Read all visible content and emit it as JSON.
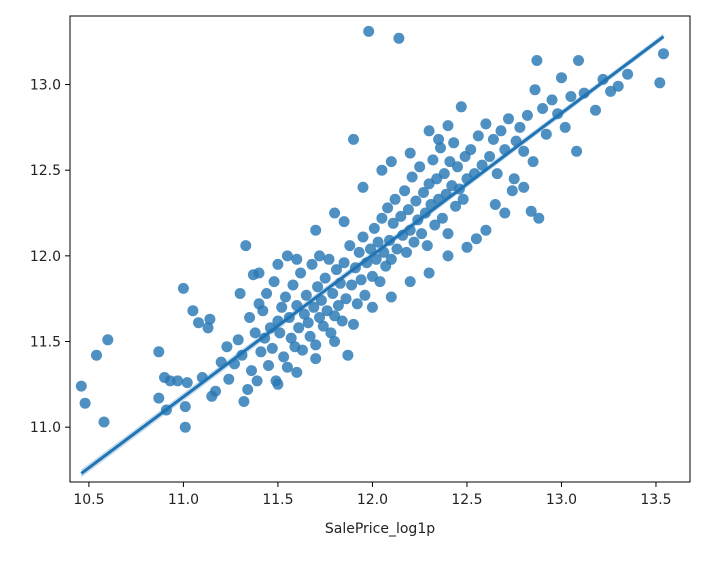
{
  "chart_data": {
    "type": "scatter",
    "title": "",
    "xlabel": "SalePrice_log1p",
    "ylabel": "",
    "xlim": [
      10.4,
      13.68
    ],
    "ylim": [
      10.68,
      13.4
    ],
    "x_ticks": [
      10.5,
      11.0,
      11.5,
      12.0,
      12.5,
      13.0,
      13.5
    ],
    "x_tick_labels": [
      "10.5",
      "11.0",
      "11.5",
      "12.0",
      "12.5",
      "13.0",
      "13.5"
    ],
    "y_ticks": [
      11.0,
      11.5,
      12.0,
      12.5,
      13.0
    ],
    "y_tick_labels": [
      "11.0",
      "11.5",
      "12.0",
      "12.5",
      "13.0"
    ],
    "grid": false,
    "legend": "none",
    "colors": {
      "points": "#2878b5",
      "line": "#2174b4",
      "band": "#9cc3e0"
    },
    "regression_line": {
      "x": [
        10.46,
        13.54
      ],
      "y": [
        10.73,
        13.28
      ]
    },
    "series": [
      {
        "points": [
          [
            10.46,
            11.24
          ],
          [
            10.48,
            11.14
          ],
          [
            10.54,
            11.42
          ],
          [
            10.58,
            11.03
          ],
          [
            10.6,
            11.51
          ],
          [
            10.87,
            11.44
          ],
          [
            10.87,
            11.17
          ],
          [
            10.9,
            11.29
          ],
          [
            10.91,
            11.1
          ],
          [
            10.93,
            11.27
          ],
          [
            10.97,
            11.27
          ],
          [
            11.0,
            11.81
          ],
          [
            11.01,
            11.0
          ],
          [
            11.01,
            11.12
          ],
          [
            11.02,
            11.26
          ],
          [
            11.05,
            11.68
          ],
          [
            11.08,
            11.61
          ],
          [
            11.1,
            11.29
          ],
          [
            11.13,
            11.58
          ],
          [
            11.14,
            11.63
          ],
          [
            11.15,
            11.18
          ],
          [
            11.17,
            11.21
          ],
          [
            11.2,
            11.38
          ],
          [
            11.23,
            11.47
          ],
          [
            11.24,
            11.28
          ],
          [
            11.27,
            11.37
          ],
          [
            11.29,
            11.51
          ],
          [
            11.31,
            11.42
          ],
          [
            11.32,
            11.15
          ],
          [
            11.33,
            12.06
          ],
          [
            11.34,
            11.22
          ],
          [
            11.35,
            11.64
          ],
          [
            11.36,
            11.33
          ],
          [
            11.37,
            11.89
          ],
          [
            11.38,
            11.55
          ],
          [
            11.39,
            11.27
          ],
          [
            11.4,
            11.72
          ],
          [
            11.41,
            11.44
          ],
          [
            11.42,
            11.68
          ],
          [
            11.43,
            11.52
          ],
          [
            11.44,
            11.78
          ],
          [
            11.45,
            11.36
          ],
          [
            11.46,
            11.58
          ],
          [
            11.47,
            11.46
          ],
          [
            11.48,
            11.85
          ],
          [
            11.49,
            11.27
          ],
          [
            11.5,
            11.62
          ],
          [
            11.51,
            11.55
          ],
          [
            11.52,
            11.7
          ],
          [
            11.53,
            11.41
          ],
          [
            11.54,
            11.76
          ],
          [
            11.55,
            11.35
          ],
          [
            11.56,
            11.64
          ],
          [
            11.57,
            11.52
          ],
          [
            11.58,
            11.83
          ],
          [
            11.59,
            11.47
          ],
          [
            11.6,
            11.71
          ],
          [
            11.61,
            11.58
          ],
          [
            11.62,
            11.9
          ],
          [
            11.63,
            11.45
          ],
          [
            11.64,
            11.66
          ],
          [
            11.65,
            11.77
          ],
          [
            11.66,
            11.61
          ],
          [
            11.67,
            11.53
          ],
          [
            11.68,
            11.95
          ],
          [
            11.69,
            11.7
          ],
          [
            11.7,
            11.48
          ],
          [
            11.71,
            11.82
          ],
          [
            11.72,
            11.64
          ],
          [
            11.73,
            11.74
          ],
          [
            11.74,
            11.59
          ],
          [
            11.75,
            11.87
          ],
          [
            11.76,
            11.68
          ],
          [
            11.77,
            11.98
          ],
          [
            11.78,
            11.55
          ],
          [
            11.79,
            11.78
          ],
          [
            11.8,
            11.65
          ],
          [
            11.81,
            11.92
          ],
          [
            11.82,
            11.71
          ],
          [
            11.83,
            11.84
          ],
          [
            11.84,
            11.62
          ],
          [
            11.85,
            11.96
          ],
          [
            11.86,
            11.75
          ],
          [
            11.87,
            11.42
          ],
          [
            11.88,
            12.06
          ],
          [
            11.89,
            11.83
          ],
          [
            11.9,
            12.68
          ],
          [
            11.91,
            11.93
          ],
          [
            11.92,
            11.72
          ],
          [
            11.93,
            12.02
          ],
          [
            11.94,
            11.86
          ],
          [
            11.95,
            12.11
          ],
          [
            11.96,
            11.77
          ],
          [
            11.97,
            11.96
          ],
          [
            11.98,
            13.31
          ],
          [
            11.99,
            12.04
          ],
          [
            12.0,
            11.88
          ],
          [
            12.01,
            12.16
          ],
          [
            12.02,
            11.98
          ],
          [
            12.03,
            12.08
          ],
          [
            12.04,
            11.85
          ],
          [
            12.05,
            12.22
          ],
          [
            12.06,
            12.02
          ],
          [
            12.07,
            11.94
          ],
          [
            12.08,
            12.28
          ],
          [
            12.09,
            12.09
          ],
          [
            12.1,
            11.98
          ],
          [
            12.11,
            12.19
          ],
          [
            12.12,
            12.33
          ],
          [
            12.13,
            12.04
          ],
          [
            12.14,
            13.27
          ],
          [
            12.15,
            12.23
          ],
          [
            12.16,
            12.12
          ],
          [
            12.17,
            12.38
          ],
          [
            12.18,
            12.02
          ],
          [
            12.19,
            12.27
          ],
          [
            12.2,
            12.15
          ],
          [
            12.21,
            12.46
          ],
          [
            12.22,
            12.08
          ],
          [
            12.23,
            12.32
          ],
          [
            12.24,
            12.21
          ],
          [
            12.25,
            12.52
          ],
          [
            12.26,
            12.13
          ],
          [
            12.27,
            12.37
          ],
          [
            12.28,
            12.25
          ],
          [
            12.29,
            12.06
          ],
          [
            12.3,
            12.42
          ],
          [
            12.31,
            12.3
          ],
          [
            12.32,
            12.56
          ],
          [
            12.33,
            12.18
          ],
          [
            12.34,
            12.45
          ],
          [
            12.35,
            12.33
          ],
          [
            12.36,
            12.63
          ],
          [
            12.37,
            12.22
          ],
          [
            12.38,
            12.48
          ],
          [
            12.39,
            12.36
          ],
          [
            12.4,
            12.13
          ],
          [
            12.41,
            12.55
          ],
          [
            12.42,
            12.41
          ],
          [
            12.43,
            12.66
          ],
          [
            12.44,
            12.29
          ],
          [
            12.45,
            12.52
          ],
          [
            12.46,
            12.39
          ],
          [
            12.47,
            12.87
          ],
          [
            12.48,
            12.33
          ],
          [
            12.49,
            12.58
          ],
          [
            12.5,
            12.45
          ],
          [
            12.52,
            12.62
          ],
          [
            12.54,
            12.48
          ],
          [
            12.56,
            12.7
          ],
          [
            12.58,
            12.53
          ],
          [
            12.6,
            12.77
          ],
          [
            12.62,
            12.58
          ],
          [
            12.64,
            12.68
          ],
          [
            12.66,
            12.48
          ],
          [
            12.68,
            12.73
          ],
          [
            12.7,
            12.62
          ],
          [
            12.72,
            12.8
          ],
          [
            12.74,
            12.38
          ],
          [
            12.76,
            12.67
          ],
          [
            12.78,
            12.75
          ],
          [
            12.8,
            12.61
          ],
          [
            12.82,
            12.82
          ],
          [
            12.84,
            12.26
          ],
          [
            12.86,
            12.97
          ],
          [
            12.87,
            13.14
          ],
          [
            12.88,
            12.22
          ],
          [
            12.9,
            12.86
          ],
          [
            12.92,
            12.71
          ],
          [
            12.95,
            12.91
          ],
          [
            12.98,
            12.83
          ],
          [
            13.0,
            13.04
          ],
          [
            13.02,
            12.75
          ],
          [
            13.05,
            12.93
          ],
          [
            13.08,
            12.61
          ],
          [
            13.09,
            13.14
          ],
          [
            13.12,
            12.95
          ],
          [
            13.18,
            12.85
          ],
          [
            13.22,
            13.03
          ],
          [
            13.26,
            12.96
          ],
          [
            13.3,
            12.99
          ],
          [
            13.35,
            13.06
          ],
          [
            13.52,
            13.01
          ],
          [
            13.54,
            13.18
          ],
          [
            11.55,
            12.0
          ],
          [
            11.6,
            11.98
          ],
          [
            11.7,
            12.15
          ],
          [
            11.72,
            12.0
          ],
          [
            11.8,
            12.25
          ],
          [
            11.85,
            12.2
          ],
          [
            11.95,
            12.4
          ],
          [
            12.05,
            12.5
          ],
          [
            12.1,
            12.55
          ],
          [
            12.2,
            12.6
          ],
          [
            12.3,
            12.73
          ],
          [
            12.35,
            12.68
          ],
          [
            12.4,
            12.76
          ],
          [
            11.9,
            11.6
          ],
          [
            12.0,
            11.7
          ],
          [
            12.1,
            11.76
          ],
          [
            12.2,
            11.85
          ],
          [
            12.3,
            11.9
          ],
          [
            12.4,
            12.0
          ],
          [
            12.5,
            12.05
          ],
          [
            12.6,
            12.15
          ],
          [
            12.7,
            12.25
          ],
          [
            12.8,
            12.4
          ],
          [
            11.5,
            11.25
          ],
          [
            11.6,
            11.32
          ],
          [
            11.7,
            11.4
          ],
          [
            11.8,
            11.5
          ],
          [
            11.4,
            11.9
          ],
          [
            11.5,
            11.95
          ],
          [
            11.3,
            11.78
          ],
          [
            12.55,
            12.1
          ],
          [
            12.65,
            12.3
          ],
          [
            12.75,
            12.45
          ],
          [
            12.85,
            12.55
          ]
        ]
      }
    ]
  }
}
